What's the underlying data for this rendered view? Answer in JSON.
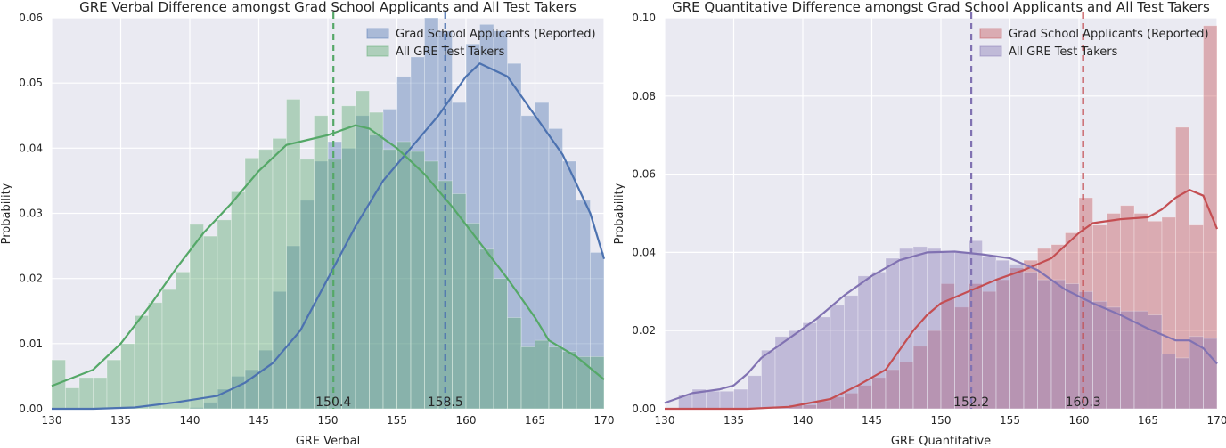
{
  "figure": {
    "left_title": "GRE Verbal Difference amongst Grad School Applicants and All Test Takers",
    "right_title": "GRE Quantitative Difference amongst Grad School Applicants and All Test Takers"
  },
  "chart_data": [
    {
      "type": "histogram",
      "title": "GRE Verbal Difference amongst Grad School Applicants and All Test Takers",
      "xlabel": "GRE Verbal",
      "ylabel": "Probability",
      "xlim": [
        130,
        170
      ],
      "ylim": [
        0,
        0.06
      ],
      "xticks": [
        "130",
        "135",
        "140",
        "145",
        "150",
        "155",
        "160",
        "165",
        "170"
      ],
      "yticks": [
        "0.00",
        "0.01",
        "0.02",
        "0.03",
        "0.04",
        "0.05",
        "0.06"
      ],
      "legend": "top-right",
      "grid": true,
      "series": [
        {
          "name": "Grad School Applicants (Reported)",
          "color": "#4c72b0",
          "bins_start": 130,
          "bin_width": 1,
          "values": [
            0.0,
            0.0,
            0.0,
            0.0,
            0.0,
            0.0,
            0.0,
            0.0,
            0.0,
            0.0,
            0.0002,
            0.001,
            0.003,
            0.005,
            0.006,
            0.009,
            0.018,
            0.025,
            0.032,
            0.038,
            0.041,
            0.04,
            0.045,
            0.042,
            0.046,
            0.051,
            0.054,
            0.06,
            0.058,
            0.047,
            0.056,
            0.059,
            0.058,
            0.053,
            0.045,
            0.047,
            0.043,
            0.038,
            0.032,
            0.024
          ],
          "mean": 158.5,
          "mean_label": "158.5",
          "kde": [
            [
              130,
              0
            ],
            [
              133,
              0
            ],
            [
              136,
              0.0002
            ],
            [
              139,
              0.001
            ],
            [
              142,
              0.002
            ],
            [
              144,
              0.004
            ],
            [
              146,
              0.007
            ],
            [
              148,
              0.012
            ],
            [
              150,
              0.02
            ],
            [
              152,
              0.028
            ],
            [
              154,
              0.035
            ],
            [
              156,
              0.04
            ],
            [
              158,
              0.045
            ],
            [
              160,
              0.051
            ],
            [
              161,
              0.053
            ],
            [
              163,
              0.051
            ],
            [
              165,
              0.045
            ],
            [
              167,
              0.039
            ],
            [
              169,
              0.03
            ],
            [
              170,
              0.023
            ]
          ]
        },
        {
          "name": "All GRE Test Takers",
          "color": "#55a868",
          "bins_start": 130,
          "bin_width": 1,
          "values": [
            0.0075,
            0.0032,
            0.0048,
            0.0048,
            0.0075,
            0.01,
            0.0143,
            0.0163,
            0.0183,
            0.021,
            0.0283,
            0.0265,
            0.029,
            0.0333,
            0.0385,
            0.0398,
            0.0415,
            0.0475,
            0.0383,
            0.045,
            0.0383,
            0.0465,
            0.0488,
            0.0455,
            0.0398,
            0.041,
            0.0395,
            0.038,
            0.035,
            0.033,
            0.0285,
            0.0245,
            0.02,
            0.014,
            0.0095,
            0.0105,
            0.0095,
            0.0088,
            0.008,
            0.008
          ],
          "mean": 150.4,
          "mean_label": "150.4",
          "kde": [
            [
              130,
              0.0035
            ],
            [
              133,
              0.006
            ],
            [
              135,
              0.01
            ],
            [
              137,
              0.0155
            ],
            [
              139,
              0.0215
            ],
            [
              141,
              0.027
            ],
            [
              143,
              0.0315
            ],
            [
              145,
              0.0365
            ],
            [
              147,
              0.0405
            ],
            [
              148,
              0.041
            ],
            [
              150,
              0.042
            ],
            [
              152,
              0.0435
            ],
            [
              153,
              0.043
            ],
            [
              155,
              0.04
            ],
            [
              157,
              0.036
            ],
            [
              159,
              0.031
            ],
            [
              161,
              0.0255
            ],
            [
              163,
              0.02
            ],
            [
              165,
              0.014
            ],
            [
              166,
              0.0105
            ],
            [
              168,
              0.008
            ],
            [
              170,
              0.0045
            ]
          ]
        }
      ]
    },
    {
      "type": "histogram",
      "title": "GRE Quantitative Difference amongst Grad School Applicants and All Test Takers",
      "xlabel": "GRE Quantitative",
      "ylabel": "Probability",
      "xlim": [
        130,
        170
      ],
      "ylim": [
        0,
        0.1
      ],
      "xticks": [
        "130",
        "135",
        "140",
        "145",
        "150",
        "155",
        "160",
        "165",
        "170"
      ],
      "yticks": [
        "0.00",
        "0.02",
        "0.04",
        "0.06",
        "0.08",
        "0.10"
      ],
      "legend": "top-right",
      "grid": true,
      "series": [
        {
          "name": "Grad School Applicants (Reported)",
          "color": "#c44e52",
          "bins_start": 130,
          "bin_width": 1,
          "values": [
            0.0,
            0.0,
            0.0,
            0.0,
            0.0,
            0.0,
            0.0,
            0.0,
            0.0002,
            0.001,
            0.001,
            0.002,
            0.003,
            0.004,
            0.006,
            0.008,
            0.01,
            0.012,
            0.016,
            0.02,
            0.032,
            0.026,
            0.032,
            0.03,
            0.033,
            0.036,
            0.038,
            0.041,
            0.042,
            0.045,
            0.054,
            0.047,
            0.05,
            0.052,
            0.05,
            0.048,
            0.049,
            0.072,
            0.047,
            0.098
          ],
          "mean": 160.3,
          "mean_label": "160.3",
          "kde": [
            [
              130,
              0
            ],
            [
              136,
              0
            ],
            [
              139,
              0.0005
            ],
            [
              142,
              0.0025
            ],
            [
              144,
              0.006
            ],
            [
              146,
              0.01
            ],
            [
              147,
              0.015
            ],
            [
              148,
              0.02
            ],
            [
              149,
              0.024
            ],
            [
              150,
              0.027
            ],
            [
              152,
              0.03
            ],
            [
              154,
              0.033
            ],
            [
              156,
              0.0355
            ],
            [
              158,
              0.0385
            ],
            [
              160,
              0.045
            ],
            [
              161,
              0.0475
            ],
            [
              163,
              0.0485
            ],
            [
              165,
              0.049
            ],
            [
              166,
              0.051
            ],
            [
              167,
              0.054
            ],
            [
              168,
              0.056
            ],
            [
              169,
              0.0545
            ],
            [
              170,
              0.046
            ]
          ]
        },
        {
          "name": "All GRE Test Takers",
          "color": "#8172b2",
          "bins_start": 130,
          "bin_width": 1,
          "values": [
            0.0,
            0.0035,
            0.005,
            0.0045,
            0.0045,
            0.005,
            0.0085,
            0.015,
            0.0185,
            0.02,
            0.022,
            0.0235,
            0.0265,
            0.029,
            0.034,
            0.035,
            0.0385,
            0.041,
            0.0415,
            0.041,
            0.04,
            0.04,
            0.043,
            0.039,
            0.038,
            0.037,
            0.035,
            0.033,
            0.033,
            0.032,
            0.03,
            0.0275,
            0.026,
            0.025,
            0.025,
            0.024,
            0.014,
            0.013,
            0.0185,
            0.018
          ],
          "mean": 152.2,
          "mean_label": "152.2",
          "kde": [
            [
              130,
              0.0015
            ],
            [
              132,
              0.004
            ],
            [
              134,
              0.005
            ],
            [
              135,
              0.006
            ],
            [
              136,
              0.009
            ],
            [
              137,
              0.013
            ],
            [
              139,
              0.018
            ],
            [
              141,
              0.023
            ],
            [
              143,
              0.029
            ],
            [
              145,
              0.034
            ],
            [
              147,
              0.038
            ],
            [
              149,
              0.04
            ],
            [
              151,
              0.0402
            ],
            [
              153,
              0.0395
            ],
            [
              155,
              0.0385
            ],
            [
              157,
              0.0355
            ],
            [
              159,
              0.0305
            ],
            [
              161,
              0.027
            ],
            [
              163,
              0.024
            ],
            [
              165,
              0.0205
            ],
            [
              167,
              0.0175
            ],
            [
              168,
              0.0175
            ],
            [
              169,
              0.0155
            ],
            [
              170,
              0.0115
            ]
          ]
        }
      ]
    }
  ]
}
